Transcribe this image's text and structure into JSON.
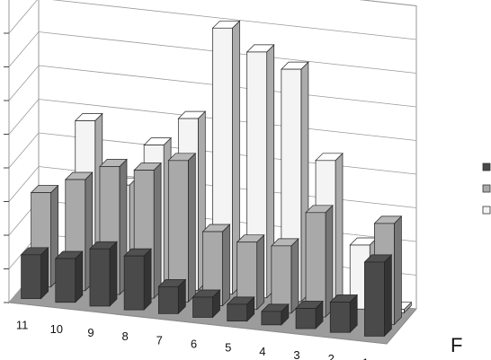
{
  "chart_data": {
    "type": "bar",
    "title": "",
    "xlabel": "",
    "ylabel": "",
    "z_axis_letter": "F",
    "categories": [
      "11",
      "10",
      "9",
      "8",
      "7",
      "6",
      "5",
      "4",
      "3",
      "2",
      "1"
    ],
    "series": [
      {
        "color": "#4a4a4a",
        "values": [
          1.3,
          1.3,
          1.7,
          1.6,
          0.8,
          0.6,
          0.5,
          0.4,
          0.6,
          0.9,
          2.2
        ]
      },
      {
        "color": "#a9a9a9",
        "values": [
          2.8,
          3.3,
          3.8,
          3.8,
          4.2,
          2.2,
          2.0,
          2.0,
          3.1,
          0.0,
          3.0
        ]
      },
      {
        "color": "#f4f4f4",
        "values": [
          0.1,
          4.7,
          2.9,
          4.2,
          5.1,
          7.9,
          7.3,
          6.9,
          4.3,
          1.9,
          0.1
        ]
      }
    ],
    "ylim": [
      0,
      9
    ],
    "grid": true,
    "legend": "right"
  }
}
